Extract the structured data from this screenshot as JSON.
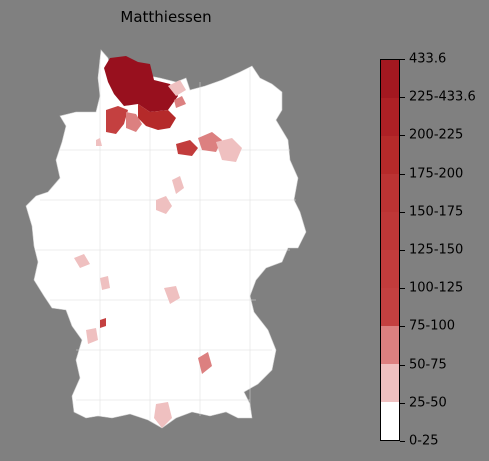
{
  "title": "Matthiessen",
  "legend": {
    "labels": [
      "0-25",
      "25-50",
      "50-75",
      "75-100",
      "100-125",
      "125-150",
      "150-175",
      "175-200",
      "200-225",
      "225-433.6",
      "433.6"
    ],
    "colors": [
      "#ffffff",
      "#efc0c0",
      "#dc8080",
      "#c44040",
      "#c23c3c",
      "#be3737",
      "#bb3333",
      "#b52a2a",
      "#ad2025",
      "#a31820",
      "#98101e"
    ]
  }
}
